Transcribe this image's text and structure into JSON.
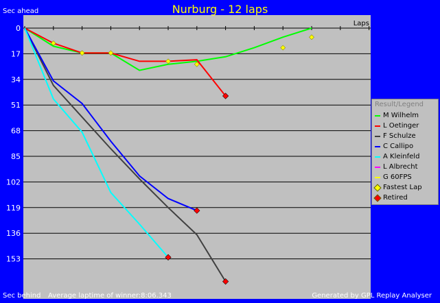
{
  "chart_data": {
    "type": "line",
    "title": "Nurburg - 12 laps",
    "ylabel_top": "Sec ahead",
    "ylabel_bottom": "Sec behind",
    "xlabel": "Laps",
    "footer_left": "Average laptime of winner:8:06.343",
    "footer_right": "Generated by GPL Replay Analyser",
    "legend_title": "Result/Legend",
    "y_ticks": [
      0,
      17,
      34,
      51,
      68,
      85,
      102,
      119,
      136,
      153
    ],
    "y_range": [
      0,
      170
    ],
    "x_range": [
      0,
      12
    ],
    "grid": true,
    "legend_position": "right",
    "series": [
      {
        "name": "M Wilhelm",
        "color": "#00ff00",
        "retired": false,
        "x": [
          0,
          1,
          2,
          3,
          4,
          5,
          6,
          7,
          8,
          9,
          10,
          11
        ],
        "y": [
          0,
          12,
          16.5,
          16.5,
          28,
          24,
          22,
          19,
          13,
          6,
          0,
          null
        ]
      },
      {
        "name": "L Oetinger",
        "color": "#ff0000",
        "retired": true,
        "x": [
          0,
          1,
          2,
          3,
          4,
          5,
          6,
          7
        ],
        "y": [
          0,
          10,
          16.5,
          16.5,
          22,
          22,
          21,
          45
        ]
      },
      {
        "name": "F Schulze",
        "color": "#404040",
        "retired": true,
        "x": [
          0,
          1,
          2,
          3,
          4,
          5,
          6,
          7
        ],
        "y": [
          0,
          38,
          59,
          80,
          100,
          119,
          137,
          168
        ]
      },
      {
        "name": "C Callipo",
        "color": "#0000ff",
        "retired": true,
        "x": [
          0,
          1,
          2,
          3,
          4,
          5,
          6
        ],
        "y": [
          0,
          35,
          50,
          75,
          98,
          113,
          121
        ]
      },
      {
        "name": "A Kleinfeld",
        "color": "#00ffff",
        "retired": true,
        "x": [
          0,
          1,
          2,
          3,
          4,
          5
        ],
        "y": [
          0,
          47,
          69,
          109,
          130,
          152
        ]
      },
      {
        "name": "L Albrecht",
        "color": "#ff00ff",
        "retired": false,
        "x": [],
        "y": []
      },
      {
        "name": "G 60FPS",
        "color": "#ffff00",
        "retired": false,
        "x": [],
        "y": []
      }
    ],
    "fastest_laps": [
      {
        "x": 1,
        "y": 10
      },
      {
        "x": 2,
        "y": 16.5
      },
      {
        "x": 3,
        "y": 16.5
      },
      {
        "x": 5,
        "y": 22
      },
      {
        "x": 6,
        "y": 24
      },
      {
        "x": 9,
        "y": 13
      },
      {
        "x": 10,
        "y": 6
      }
    ],
    "fastest_lap_label": "Fastest Lap",
    "retired_label": "Retired",
    "fastest_color": "#ffff00",
    "retired_color": "#ff0000"
  }
}
